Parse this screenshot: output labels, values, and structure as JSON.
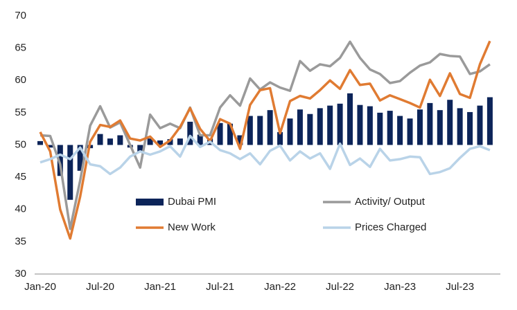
{
  "chart_data": {
    "type": "bar-line",
    "categories": [
      "Jan-20",
      null,
      null,
      null,
      null,
      null,
      "Jul-20",
      null,
      null,
      null,
      null,
      null,
      "Jan-21",
      null,
      null,
      null,
      null,
      null,
      "Jul-21",
      null,
      null,
      null,
      null,
      null,
      "Jan-22",
      null,
      null,
      null,
      null,
      null,
      "Jul-22",
      null,
      null,
      null,
      null,
      null,
      "Jan-23",
      null,
      null,
      null,
      null,
      null,
      "Jul-23",
      null,
      null,
      null
    ],
    "series": [
      {
        "name": "Dubai PMI",
        "type": "bar",
        "color": "#0c2459",
        "values": [
          50.6,
          49.6,
          45.2,
          41.5,
          46,
          49.5,
          51.7,
          51.0,
          51.5,
          49.6,
          49.0,
          51.0,
          50.7,
          50.9,
          51.0,
          53.6,
          51.6,
          51.0,
          53.4,
          53.3,
          51.5,
          54.5,
          54.5,
          55.4,
          52.0,
          54.1,
          55.5,
          54.8,
          55.7,
          56.1,
          56.4,
          58.0,
          56.2,
          56.0,
          55.0,
          55.3,
          54.5,
          54.1,
          55.5,
          56.5,
          55.4,
          57.0,
          55.7,
          55.1,
          56.1,
          57.4
        ]
      },
      {
        "name": "Activity/ Output",
        "type": "line",
        "color": "#9a9a9a",
        "values": [
          51.5,
          51.4,
          47,
          37,
          44.5,
          53,
          56,
          52.7,
          53.5,
          50,
          46.5,
          54.7,
          52.6,
          53.3,
          52.6,
          55.8,
          51.5,
          51.5,
          55.8,
          57.7,
          56.1,
          60.3,
          58.6,
          59.7,
          58.9,
          58.4,
          63,
          61.5,
          62.5,
          62.2,
          63.5,
          66,
          63.5,
          61.7,
          61,
          59.6,
          59.9,
          61.2,
          62.3,
          62.8,
          64.1,
          63.8,
          63.7,
          61,
          61.4,
          62.5
        ]
      },
      {
        "name": "New Work",
        "type": "line",
        "color": "#e07b32",
        "values": [
          52,
          49,
          40,
          35.5,
          42,
          50.5,
          53.1,
          52.8,
          53.8,
          51,
          50.7,
          51.3,
          49.7,
          50.7,
          52.8,
          55.7,
          52.5,
          50.6,
          54,
          53.3,
          49.4,
          56.2,
          58.5,
          58.8,
          51.8,
          56.8,
          57.6,
          57.2,
          58.5,
          60,
          58.7,
          61.6,
          59.3,
          59.5,
          56.9,
          57.7,
          57.1,
          56.5,
          55.8,
          60.1,
          57.6,
          61.1,
          57.9,
          57.3,
          62.5,
          66.1
        ]
      },
      {
        "name": "Prices Charged",
        "type": "line",
        "color": "#b9d3e8",
        "values": [
          47.3,
          47.8,
          48.5,
          47.8,
          49.6,
          47,
          46.7,
          45.5,
          46.5,
          48.2,
          49,
          48.5,
          49,
          49.8,
          48.2,
          51.4,
          49.7,
          50.5,
          49.2,
          48.7,
          47.8,
          48.7,
          47,
          49.1,
          49.9,
          47.6,
          49,
          47.9,
          48.7,
          46.3,
          50.2,
          46.9,
          47.9,
          46.6,
          49.4,
          47.6,
          47.8,
          48.2,
          48.1,
          45.5,
          45.8,
          46.4,
          48,
          49.4,
          49.8,
          49.2
        ]
      }
    ],
    "bar_baseline": 50,
    "ylim": [
      30,
      70
    ],
    "yticks": [
      30,
      35,
      40,
      45,
      50,
      55,
      60,
      65,
      70
    ],
    "grid": false
  }
}
